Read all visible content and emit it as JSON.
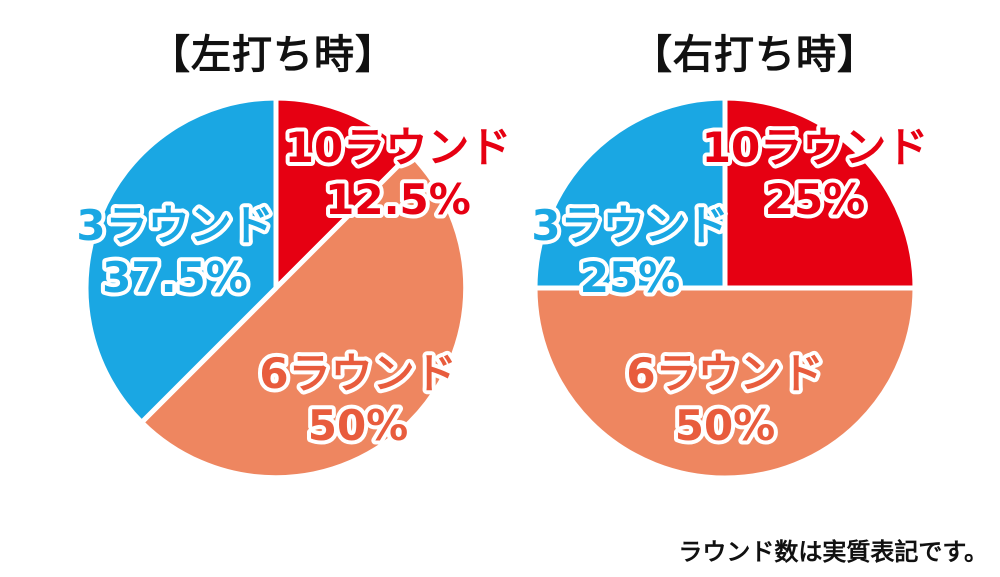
{
  "footnote": "ラウンド数は実質表記です。",
  "colors": {
    "red": "#e60012",
    "salmon": "#ee8660",
    "blue": "#1aa7e3",
    "text": "#111111"
  },
  "chart_data": [
    {
      "type": "pie",
      "title": "【左打ち時】",
      "slices": [
        {
          "label": "10ラウンド",
          "value": 12.5,
          "value_label": "12.5%",
          "color": "#e60012",
          "text_color": "#e60012"
        },
        {
          "label": "6ラウンド",
          "value": 50,
          "value_label": "50%",
          "color": "#ee8660",
          "text_color": "#e85c3d"
        },
        {
          "label": "3ラウンド",
          "value": 37.5,
          "value_label": "37.5%",
          "color": "#1aa7e3",
          "text_color": "#1aa7e3"
        }
      ]
    },
    {
      "type": "pie",
      "title": "【右打ち時】",
      "slices": [
        {
          "label": "10ラウンド",
          "value": 25,
          "value_label": "25%",
          "color": "#e60012",
          "text_color": "#e60012"
        },
        {
          "label": "6ラウンド",
          "value": 50,
          "value_label": "50%",
          "color": "#ee8660",
          "text_color": "#e85c3d"
        },
        {
          "label": "3ラウンド",
          "value": 25,
          "value_label": "25%",
          "color": "#1aa7e3",
          "text_color": "#1aa7e3"
        }
      ]
    }
  ]
}
